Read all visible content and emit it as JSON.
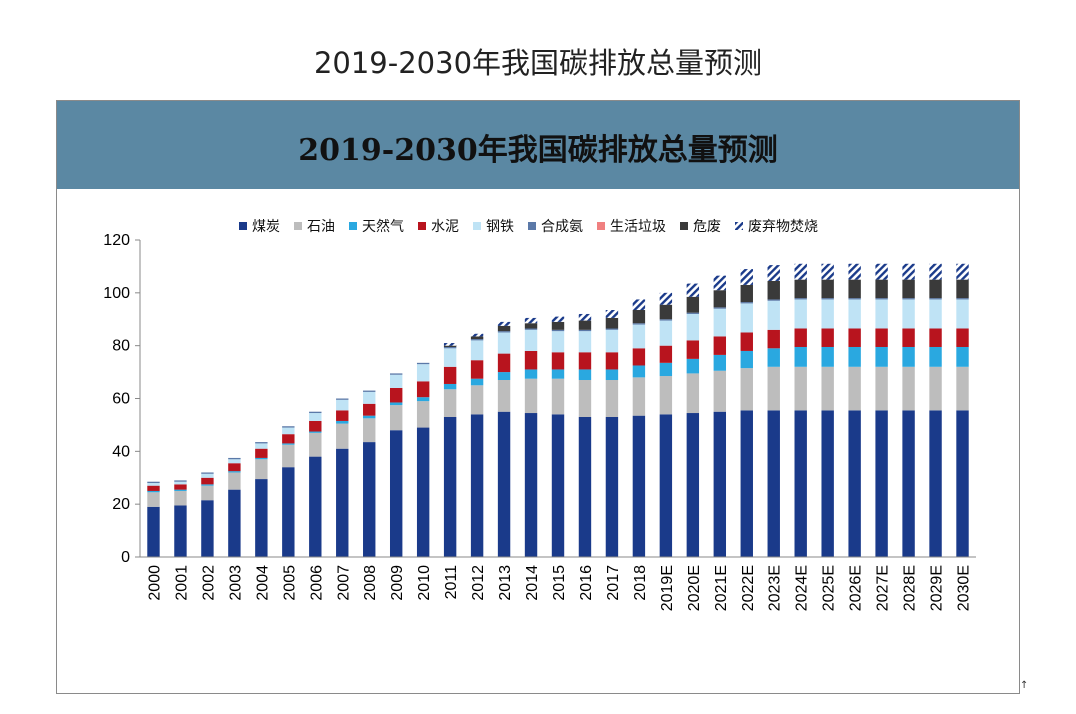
{
  "page": {
    "title": "2019-2030年我国碳排放总量预测"
  },
  "chart_data": {
    "type": "bar",
    "stacked": true,
    "title": "2019-2030年我国碳排放总量预测",
    "xlabel": "",
    "ylabel": "",
    "ylim": [
      0,
      120
    ],
    "yticks": [
      0,
      20,
      40,
      60,
      80,
      100,
      120
    ],
    "grid": false,
    "legend_position": "top",
    "categories": [
      "2000",
      "2001",
      "2002",
      "2003",
      "2004",
      "2005",
      "2006",
      "2007",
      "2008",
      "2009",
      "2010",
      "2011",
      "2012",
      "2013",
      "2014",
      "2015",
      "2016",
      "2017",
      "2018",
      "2019E",
      "2020E",
      "2021E",
      "2022E",
      "2023E",
      "2024E",
      "2025E",
      "2026E",
      "2027E",
      "2028E",
      "2029E",
      "2030E"
    ],
    "series": [
      {
        "name": "煤炭",
        "color": "#1a3a8a",
        "pattern": "solid",
        "values": [
          19,
          19.5,
          21.5,
          25.5,
          29.5,
          34,
          38,
          41,
          43.5,
          48,
          49,
          53,
          54,
          55,
          54.5,
          54,
          53,
          53,
          53.5,
          54,
          54.5,
          55,
          55.5,
          55.5,
          55.5,
          55.5,
          55.5,
          55.5,
          55.5,
          55.5,
          55.5
        ]
      },
      {
        "name": "石油",
        "color": "#bdbdbd",
        "pattern": "solid",
        "values": [
          5.5,
          5.5,
          5.5,
          6.5,
          7.5,
          8.5,
          9,
          9.5,
          9,
          9.5,
          10,
          10.5,
          11,
          12,
          13,
          13.5,
          14,
          14,
          14.5,
          14.5,
          15,
          15.5,
          16,
          16.5,
          16.5,
          16.5,
          16.5,
          16.5,
          16.5,
          16.5,
          16.5
        ]
      },
      {
        "name": "天然气",
        "color": "#2aa8e0",
        "pattern": "solid",
        "values": [
          0.5,
          0.5,
          0.5,
          0.5,
          0.5,
          0.5,
          0.5,
          1,
          1,
          1,
          1.5,
          2,
          2.5,
          3,
          3.5,
          3.5,
          4,
          4,
          4.5,
          5,
          5.5,
          6,
          6.5,
          7,
          7.5,
          7.5,
          7.5,
          7.5,
          7.5,
          7.5,
          7.5
        ]
      },
      {
        "name": "水泥",
        "color": "#b8141e",
        "pattern": "solid",
        "values": [
          2,
          2,
          2.5,
          3,
          3.5,
          3.5,
          4,
          4,
          4.5,
          5.5,
          6,
          6.5,
          7,
          7,
          7,
          6.5,
          6.5,
          6.5,
          6.5,
          6.5,
          7,
          7,
          7,
          7,
          7,
          7,
          7,
          7,
          7,
          7,
          7
        ]
      },
      {
        "name": "钢铁",
        "color": "#bfe3f5",
        "pattern": "solid",
        "values": [
          1,
          1,
          1.5,
          1.5,
          2,
          2.5,
          3,
          4,
          4.5,
          5,
          6.5,
          7,
          7.5,
          8,
          8,
          8,
          8,
          8.5,
          9,
          9.5,
          10,
          10.5,
          11,
          11,
          11,
          11,
          11,
          11,
          11,
          11,
          11
        ]
      },
      {
        "name": "合成氨",
        "color": "#5b79a8",
        "pattern": "solid",
        "values": [
          0.5,
          0.5,
          0.5,
          0.5,
          0.5,
          0.5,
          0.5,
          0.5,
          0.5,
          0.5,
          0.5,
          0.5,
          0.5,
          0.5,
          0.5,
          0.5,
          0.5,
          0.5,
          0.5,
          0.5,
          0.5,
          0.5,
          0.5,
          0.5,
          0.5,
          0.5,
          0.5,
          0.5,
          0.5,
          0.5,
          0.5
        ]
      },
      {
        "name": "生活垃圾",
        "color": "#f08080",
        "pattern": "solid",
        "values": [
          0,
          0,
          0,
          0,
          0,
          0,
          0,
          0,
          0,
          0,
          0,
          0,
          0,
          0,
          0,
          0,
          0,
          0,
          0,
          0,
          0,
          0,
          0,
          0,
          0,
          0,
          0,
          0,
          0,
          0,
          0
        ]
      },
      {
        "name": "危废",
        "color": "#3a3a3a",
        "pattern": "solid",
        "values": [
          0,
          0,
          0,
          0,
          0,
          0,
          0,
          0,
          0,
          0,
          0,
          0.5,
          1,
          2,
          2,
          3,
          3.5,
          4,
          5,
          5.5,
          6,
          6.5,
          6.5,
          7,
          7,
          7,
          7,
          7,
          7,
          7,
          7
        ]
      },
      {
        "name": "废弃物焚烧",
        "color": "#1a3a8a",
        "pattern": "hatch",
        "values": [
          0,
          0,
          0,
          0,
          0,
          0,
          0,
          0,
          0,
          0,
          0,
          1,
          1,
          1.5,
          2,
          2,
          2.5,
          3,
          4,
          4.5,
          5,
          5.5,
          6,
          6,
          6,
          6,
          6,
          6,
          6,
          6,
          6
        ]
      }
    ]
  }
}
